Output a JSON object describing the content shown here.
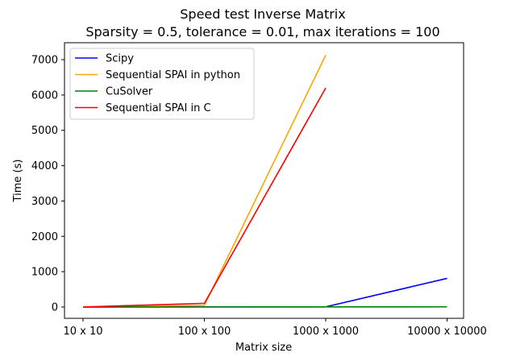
{
  "chart_data": {
    "type": "line",
    "title": "Speed test Inverse Matrix",
    "subtitle": "Sparsity = 0.5, tolerance = 0.01, max iterations = 100",
    "xlabel": "Matrix size",
    "ylabel": "Time (s)",
    "categories": [
      "10 x 10",
      "100 x 100",
      "1000 x 1000",
      "10000 x 10000"
    ],
    "ylim": [
      -320,
      7480
    ],
    "yticks": [
      0,
      1000,
      2000,
      3000,
      4000,
      5000,
      6000,
      7000
    ],
    "grid": false,
    "legend_position": "top-left",
    "series": [
      {
        "name": "Scipy",
        "color": "#0000ff",
        "values": [
          0,
          3,
          5,
          810
        ]
      },
      {
        "name": "Sequential SPAI in python",
        "color": "#ffa500",
        "values": [
          0,
          50,
          7130,
          null
        ]
      },
      {
        "name": "CuSolver",
        "color": "#008000",
        "values": [
          0,
          2,
          3,
          5
        ]
      },
      {
        "name": "Sequential SPAI in C",
        "color": "#ff0000",
        "values": [
          0,
          105,
          6200,
          null
        ]
      }
    ]
  }
}
